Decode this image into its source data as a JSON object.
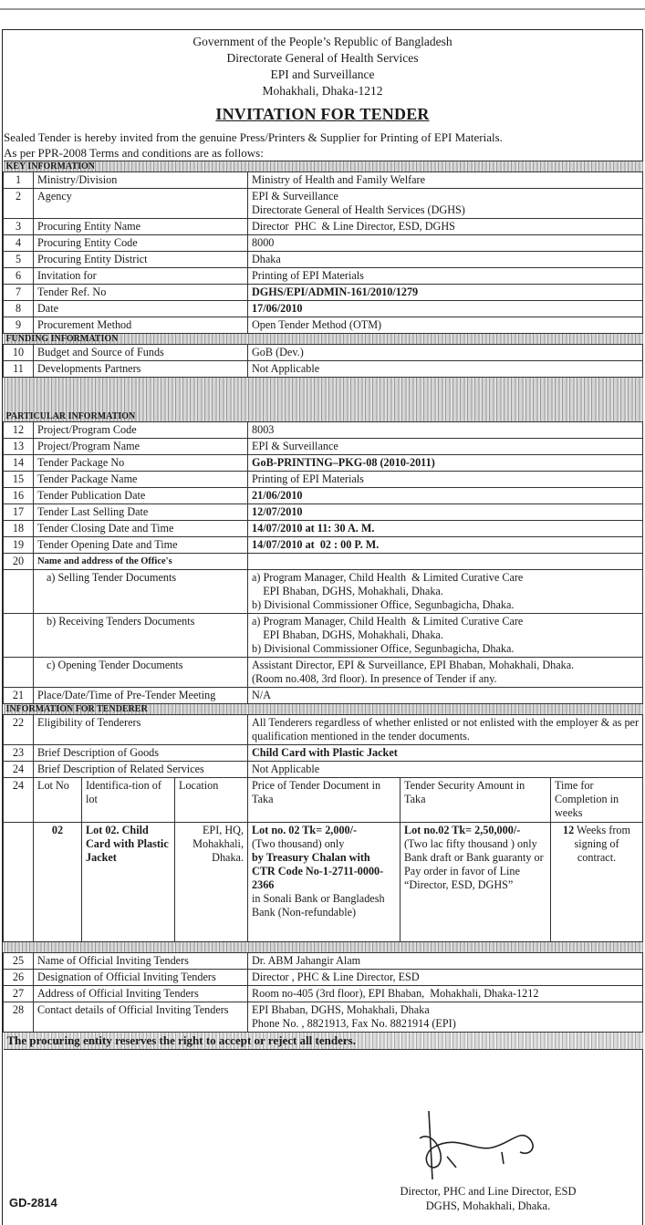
{
  "header_lines": [
    "Government of the People’s Republic of Bangladesh",
    "Directorate General of Health Services",
    "EPI and Surveillance",
    "Mohakhali, Dhaka-1212"
  ],
  "title": "INVITATION FOR TENDER",
  "intro": [
    "Sealed Tender is hereby invited from the genuine Press/Printers & Supplier for Printing of EPI Materials.",
    "As per PPR-2008 Terms and conditions are as follows:"
  ],
  "sections": [
    {
      "band": "KEY INFORMATION",
      "rows": [
        {
          "no": "1",
          "label": "Ministry/Division",
          "value": [
            "Ministry of Health and Family Welfare"
          ]
        },
        {
          "no": "2",
          "label": "Agency",
          "value": [
            "EPI & Surveillance",
            "Directorate General of Health Services (DGHS)"
          ]
        },
        {
          "no": "3",
          "label": "Procuring Entity Name",
          "value": [
            "Director  PHC  & Line Director, ESD, DGHS"
          ]
        },
        {
          "no": "4",
          "label": "Procuring Entity Code",
          "value": [
            "8000"
          ]
        },
        {
          "no": "5",
          "label": "Procuring Entity District",
          "value": [
            "Dhaka"
          ]
        },
        {
          "no": "6",
          "label": "Invitation for",
          "value": [
            "Printing of EPI Materials"
          ]
        },
        {
          "no": "7",
          "label": "Tender Ref. No",
          "value": [
            "DGHS/EPI/ADMIN-161/2010/1279"
          ],
          "bold": true
        },
        {
          "no": "8",
          "label": "Date",
          "value": [
            "17/06/2010"
          ],
          "bold": true
        },
        {
          "no": "9",
          "label": "Procurement Method",
          "value": [
            "Open Tender Method (OTM)"
          ]
        }
      ]
    },
    {
      "band": "FUNDING INFORMATION",
      "rows": [
        {
          "no": "10",
          "label": "Budget and Source of Funds",
          "value": [
            "GoB (Dev.)"
          ]
        },
        {
          "no": "11",
          "label": "Developments Partners",
          "value": [
            "Not Applicable"
          ]
        }
      ]
    },
    {
      "band": "PARTICULAR INFORMATION",
      "tall": true,
      "rows": [
        {
          "no": "12",
          "label": "Project/Program Code",
          "value": [
            "8003"
          ]
        },
        {
          "no": "13",
          "label": "Project/Program Name",
          "value": [
            "EPI & Surveillance"
          ]
        },
        {
          "no": "14",
          "label": "Tender Package No",
          "value": [
            "GoB-PRINTING–PKG-08 (2010-2011)"
          ],
          "bold": true
        },
        {
          "no": "15",
          "label": "Tender Package Name",
          "value": [
            "Printing of EPI Materials"
          ]
        },
        {
          "no": "16",
          "label": "Tender Publication Date",
          "value": [
            "21/06/2010"
          ],
          "bold": true
        },
        {
          "no": "17",
          "label": "Tender Last Selling Date",
          "value": [
            "12/07/2010"
          ],
          "bold": true
        },
        {
          "no": "18",
          "label": "Tender Closing Date and Time",
          "value": [
            "14/07/2010 at 11: 30 A. M."
          ],
          "bold": true
        },
        {
          "no": "19",
          "label": "Tender Opening Date and Time",
          "value": [
            "14/07/2010 at  02 : 00 P. M."
          ],
          "bold": true
        },
        {
          "no": "20",
          "label": "Name and address of the Office's",
          "value": [],
          "small": true
        },
        {
          "no": "",
          "label": "a) Selling Tender Documents",
          "value": [
            "a) Program Manager, Child Health  & Limited Curative Care",
            "    EPI Bhaban, DGHS, Mohakhali, Dhaka.",
            "b) Divisional Commissioner Office, Segunbagicha, Dhaka."
          ],
          "indent": true
        },
        {
          "no": "",
          "label": "b) Receiving Tenders Documents",
          "value": [
            "a) Program Manager, Child Health  & Limited Curative Care",
            "    EPI Bhaban, DGHS, Mohakhali, Dhaka.",
            "b) Divisional Commissioner Office, Segunbagicha, Dhaka."
          ],
          "indent": true
        },
        {
          "no": "",
          "label": "c) Opening Tender Documents",
          "value": [
            "Assistant Director, EPI & Surveillance, EPI Bhaban, Mohakhali, Dhaka.",
            "(Room no.408, 3rd floor). In presence of Tender if any."
          ],
          "indent": true
        },
        {
          "no": "21",
          "label": "Place/Date/Time of Pre-Tender Meeting",
          "value": [
            "N/A"
          ]
        }
      ]
    },
    {
      "band": "INFORMATION FOR TENDERER",
      "rows": [
        {
          "no": "22",
          "label": "Eligibility of Tenderers",
          "value": [
            "All Tenderers regardless of whether enlisted or not enlisted with the employer & as per qualification mentioned in the tender documents."
          ]
        },
        {
          "no": "23",
          "label": "Brief Description of Goods",
          "value": [
            "Child Card with Plastic Jacket"
          ],
          "bold": true
        },
        {
          "no": "24",
          "label": "Brief Description of Related Services",
          "value": [
            "Not Applicable"
          ]
        }
      ]
    }
  ],
  "lot_table": {
    "row_no": "24",
    "headers": [
      "Lot No",
      "Identifica-tion of lot",
      "Location",
      "Price of Tender Document in Taka",
      "Tender Security Amount in Taka",
      "Time for Completion in weeks"
    ],
    "row": {
      "lot_no": "02",
      "identification": "Lot 02. Child Card with Plastic Jacket",
      "location": "EPI, HQ, Mohakhali, Dhaka.",
      "price": [
        "Lot no. 02 Tk= 2,000/-",
        "(Two thousand) only",
        "by Treasury Chalan with CTR Code No-1-2711-0000-2366",
        "in Sonali Bank or Bangladesh Bank (Non-refundable)"
      ],
      "security": [
        "Lot no.02 Tk= 2,50,000/-",
        "(Two lac fifty thousand ) only Bank draft or Bank guaranty or Pay order in favor of Line “Director, ESD, DGHS”"
      ],
      "time_bold": "12",
      "time_rest": " Weeks from signing of contract."
    }
  },
  "official_rows": [
    {
      "no": "25",
      "label": "Name of  Official Inviting Tenders",
      "value": [
        "Dr. ABM Jahangir Alam"
      ]
    },
    {
      "no": "26",
      "label": "Designation of Official Inviting Tenders",
      "value": [
        "Director , PHC & Line Director, ESD"
      ]
    },
    {
      "no": "27",
      "label": "Address of Official Inviting Tenders",
      "value": [
        "Room no-405 (3rd floor), EPI Bhaban,  Mohakhali, Dhaka-1212"
      ]
    },
    {
      "no": "28",
      "label": "Contact details of Official Inviting Tenders",
      "value": [
        "EPI Bhaban, DGHS, Mohakhali, Dhaka",
        "Phone No. , 8821913, Fax No. 8821914 (EPI)"
      ]
    }
  ],
  "closing_statement": "The procuring entity reserves the right to accept or reject all tenders.",
  "signatory": [
    "Director, PHC and Line Director, ESD",
    "DGHS, Mohakhali, Dhaka."
  ],
  "footer_code": "GD-2814"
}
